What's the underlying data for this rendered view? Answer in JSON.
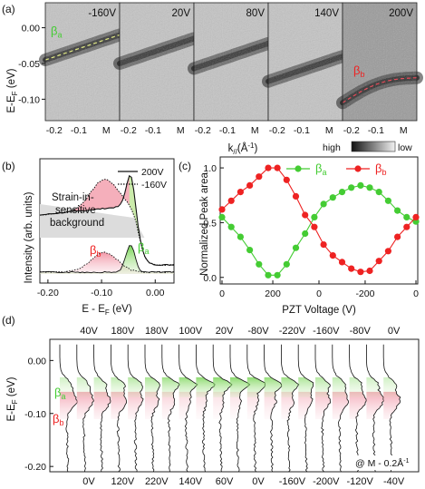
{
  "panels": {
    "a": {
      "label": "(a)",
      "ylabel": "E-E",
      "ylabel_sub": "F",
      "ylabel_unit": "(eV)",
      "yticks": [
        "0.00",
        "-0.05",
        "-0.10"
      ],
      "xticks": [
        "-0.2",
        "-0.1",
        "M"
      ],
      "xlabel": "k",
      "xlabel_sub": "//",
      "xlabel_unit": "(Å",
      "xlabel_exp": "-1",
      "xlabel_close": ")",
      "voltages": [
        "-160V",
        "20V",
        "80V",
        "140V",
        "200V"
      ],
      "beta_a": "β",
      "beta_a_sub": "a",
      "beta_b": "β",
      "beta_b_sub": "b",
      "colorbar_high": "high",
      "colorbar_low": "low"
    },
    "b": {
      "label": "(b)",
      "ylabel": "Intensity (arb. units)",
      "xlabel": "E - E",
      "xlabel_sub": "F",
      "xlabel_unit": " (eV)",
      "xticks": [
        "-0.20",
        "-0.10",
        "0.00"
      ],
      "legend": [
        "200V",
        "-160V"
      ],
      "background_label": [
        "Strain-in-",
        "sensitive",
        "background"
      ],
      "beta_b": "β",
      "beta_b_sub": "b",
      "beta_a": "β",
      "beta_a_sub": "a"
    },
    "d": {
      "label": "(d)",
      "ylabel": "E-E",
      "ylabel_sub": "F",
      "ylabel_unit": "(eV)",
      "yticks": [
        "0.00",
        "-0.10",
        "-0.20"
      ],
      "top_voltages": [
        "40V",
        "180V",
        "180V",
        "100V",
        "20V",
        "-80V",
        "-220V",
        "-160V",
        "-80V",
        "0V"
      ],
      "bottom_voltages": [
        "0V",
        "120V",
        "220V",
        "140V",
        "60V",
        "0V",
        "-160V",
        "-200V",
        "-120V",
        "-40V"
      ],
      "beta_a": "β",
      "beta_a_sub": "a",
      "beta_b": "β",
      "beta_b_sub": "b",
      "annotation": "@ M - 0.2Å",
      "annotation_exp": "-1"
    }
  },
  "colors": {
    "beta_a": "#44cc33",
    "beta_b": "#ee2222",
    "fill_a": "#c8eeaa",
    "fill_b": "#f4a6b4"
  },
  "chart_data": {
    "type": "line",
    "title": "",
    "xlabel": "PZT Voltage (V)",
    "ylabel": "Normalized Peak area",
    "panel_label": "(c)",
    "xticks": [
      "0",
      "200",
      "0",
      "-200",
      "0"
    ],
    "yticks": [
      "0.0",
      "0.5",
      "1.0"
    ],
    "ylim": [
      0,
      1.1
    ],
    "legend_position": "top",
    "sequence_steps": 22,
    "series": [
      {
        "name": "β",
        "name_sub": "a",
        "color": "#44cc33",
        "values": [
          0.55,
          0.46,
          0.37,
          0.25,
          0.12,
          0.02,
          0.02,
          0.12,
          0.27,
          0.4,
          0.55,
          0.67,
          0.73,
          0.78,
          0.82,
          0.84,
          0.82,
          0.78,
          0.7,
          0.61,
          0.55,
          0.51
        ]
      },
      {
        "name": "β",
        "name_sub": "b",
        "color": "#ee2222",
        "values": [
          0.62,
          0.7,
          0.78,
          0.84,
          0.92,
          1.0,
          1.0,
          0.89,
          0.74,
          0.57,
          0.46,
          0.3,
          0.2,
          0.14,
          0.08,
          0.05,
          0.06,
          0.15,
          0.24,
          0.37,
          0.46,
          0.55
        ]
      }
    ]
  }
}
